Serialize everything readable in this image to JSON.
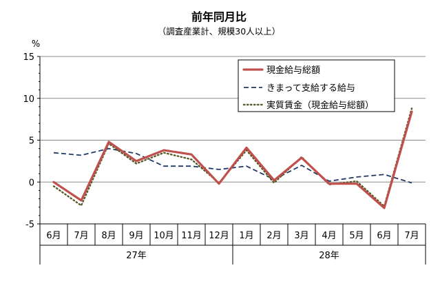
{
  "chart_data": {
    "type": "line",
    "title": "前年同月比",
    "subtitle": "（調査産業計、規模30人以上）",
    "y_unit": "%",
    "ylim": [
      -5,
      15
    ],
    "y_ticks": [
      "15",
      "10",
      "5",
      "0",
      "-5"
    ],
    "grid": "horizontal",
    "legend_position": "top-right",
    "categories": [
      "6月",
      "7月",
      "8月",
      "9月",
      "10月",
      "11月",
      "12月",
      "1月",
      "2月",
      "3月",
      "4月",
      "5月",
      "6月",
      "7月"
    ],
    "year_groups": [
      {
        "label": "27年",
        "span": 7
      },
      {
        "label": "28年",
        "span": 7
      }
    ],
    "series": [
      {
        "name": "現金給与総額",
        "color": "#c0504d",
        "style": "solid",
        "values": [
          0.0,
          -2.2,
          4.8,
          2.5,
          3.8,
          3.3,
          -0.2,
          4.1,
          0.2,
          2.9,
          -0.2,
          -0.2,
          -3.1,
          8.4
        ]
      },
      {
        "name": "きまって支給する給与",
        "color": "#1f3864",
        "style": "dash",
        "values": [
          3.5,
          3.2,
          4.0,
          3.4,
          1.9,
          1.9,
          1.5,
          1.9,
          0.3,
          2.0,
          0.1,
          0.6,
          0.9,
          -0.1
        ]
      },
      {
        "name": "実質賃金（現金給与総額）",
        "color": "#5a5a2a",
        "style": "dot",
        "values": [
          -0.5,
          -2.8,
          4.6,
          2.2,
          3.5,
          2.7,
          -0.1,
          3.8,
          -0.1,
          3.0,
          -0.3,
          0.1,
          -2.9,
          8.8
        ]
      }
    ]
  }
}
